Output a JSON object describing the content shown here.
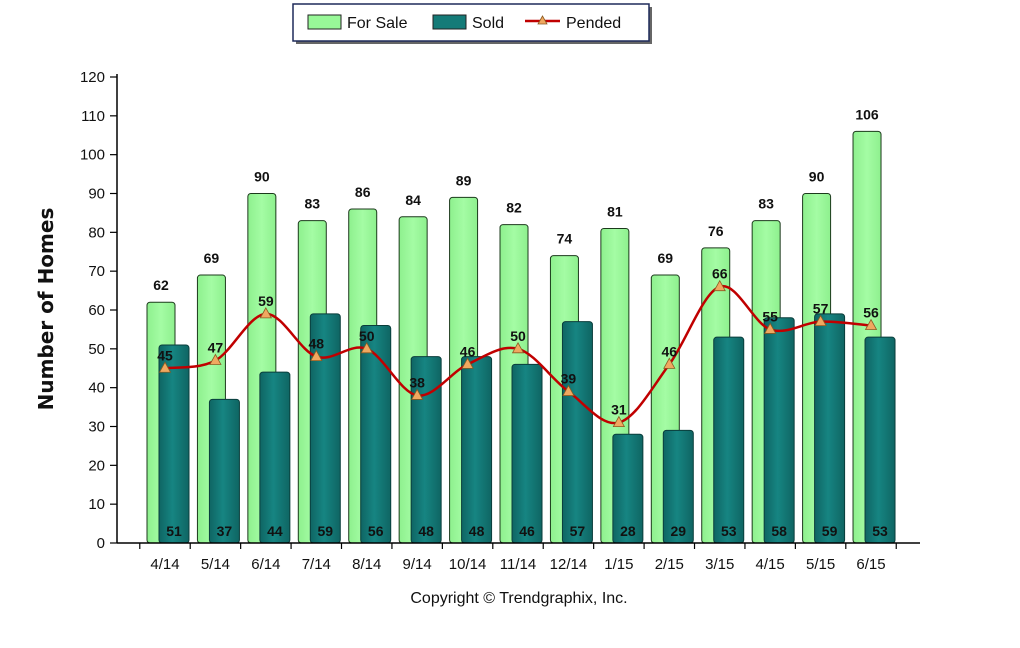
{
  "chart_data": {
    "type": "bar",
    "categories": [
      "4/14",
      "5/14",
      "6/14",
      "7/14",
      "8/14",
      "9/14",
      "10/14",
      "11/14",
      "12/14",
      "1/15",
      "2/15",
      "3/15",
      "4/15",
      "5/15",
      "6/15"
    ],
    "series": [
      {
        "name": "For Sale",
        "type": "bar",
        "color": "#98F898",
        "values": [
          62,
          69,
          90,
          83,
          86,
          84,
          89,
          82,
          74,
          81,
          69,
          76,
          83,
          90,
          106
        ]
      },
      {
        "name": "Sold",
        "type": "bar",
        "color": "#147B78",
        "values": [
          51,
          37,
          44,
          59,
          56,
          48,
          48,
          46,
          57,
          28,
          29,
          53,
          58,
          59,
          53
        ]
      },
      {
        "name": "Pended",
        "type": "line",
        "color": "#C00000",
        "marker_color": "#F0A860",
        "values": [
          45,
          47,
          59,
          48,
          50,
          38,
          46,
          50,
          39,
          31,
          46,
          66,
          55,
          57,
          56
        ]
      }
    ],
    "ylabel": "Number of Homes",
    "ylim": [
      0,
      120
    ],
    "yticks": [
      0,
      10,
      20,
      30,
      40,
      50,
      60,
      70,
      80,
      90,
      100,
      110,
      120
    ],
    "legend_position": "top-center",
    "grid": false
  },
  "footer": {
    "copyright": "Copyright © Trendgraphix, Inc."
  }
}
